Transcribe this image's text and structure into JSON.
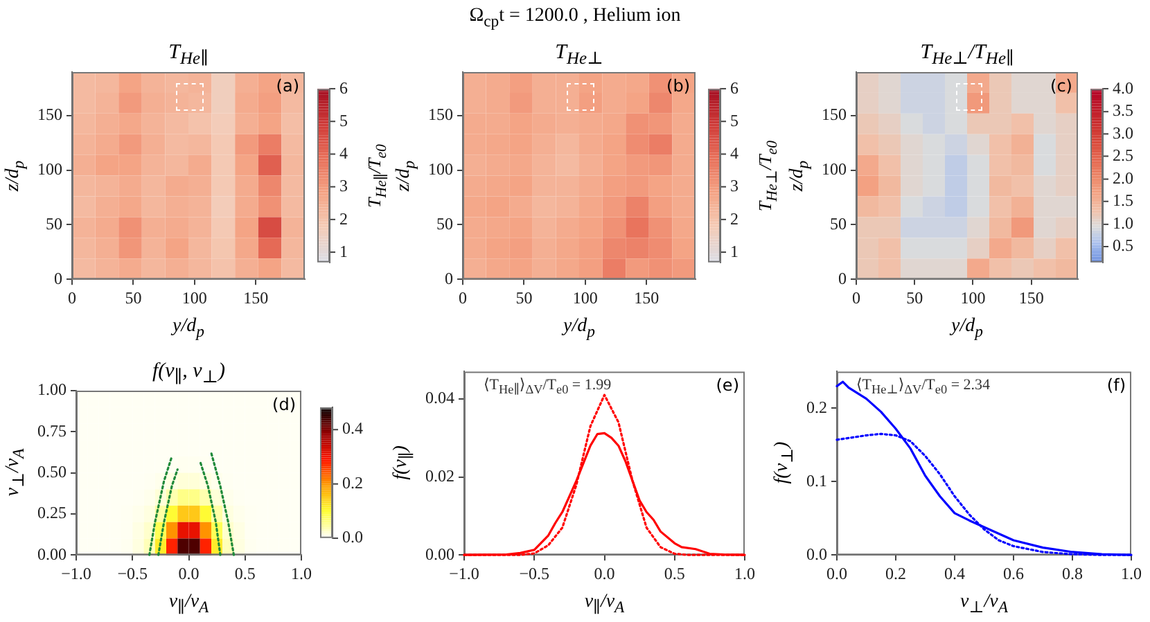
{
  "chart_data": [
    {
      "type": "other",
      "title": "Ω$_{cp}$t = 1200.0 , Helium ion"
    },
    {
      "type": "heatmap",
      "title": "T$_{He∥}$",
      "xlabel": "y/d$_{p}$",
      "ylabel": "z/d$_{p}$",
      "clabel": "T$_{He∥}$/T$_{e0}$",
      "annotations": [
        "(a)"
      ],
      "xlim": [
        0,
        190
      ],
      "ylim": [
        0,
        190
      ],
      "xticks": [
        0,
        50,
        100,
        150
      ],
      "yticks": [
        0,
        50,
        100,
        150
      ],
      "clim": [
        0.7,
        6
      ],
      "cticks": [
        1,
        2,
        3,
        4,
        5,
        6
      ],
      "colors": [
        "#dcdde4",
        "#f4cbb6",
        "#f4a384",
        "#e8705a",
        "#cf3b38",
        "#a50f22"
      ],
      "cells": [
        [
          2.2,
          2.3,
          2.8,
          2.4,
          2.3,
          2.4,
          1.6,
          2.5,
          2.8,
          2.3
        ],
        [
          2.2,
          2.4,
          3.0,
          2.5,
          2.4,
          2.3,
          1.6,
          2.6,
          2.9,
          2.2
        ],
        [
          2.3,
          2.5,
          2.7,
          2.4,
          2.2,
          2.0,
          1.7,
          2.5,
          2.8,
          2.1
        ],
        [
          2.4,
          2.6,
          3.0,
          2.5,
          2.2,
          2.3,
          1.8,
          3.0,
          3.6,
          2.2
        ],
        [
          2.5,
          2.8,
          2.8,
          2.4,
          2.3,
          2.6,
          1.8,
          2.8,
          4.2,
          2.3
        ],
        [
          2.3,
          2.4,
          2.6,
          2.3,
          2.6,
          2.5,
          1.8,
          2.6,
          3.4,
          2.2
        ],
        [
          2.2,
          2.5,
          2.7,
          2.3,
          2.5,
          2.4,
          1.7,
          2.6,
          3.2,
          2.2
        ],
        [
          2.4,
          2.6,
          3.2,
          2.5,
          2.6,
          2.4,
          1.8,
          2.8,
          4.6,
          2.4
        ],
        [
          2.3,
          2.5,
          3.1,
          2.4,
          2.8,
          2.3,
          1.9,
          2.7,
          4.0,
          2.3
        ],
        [
          2.2,
          2.4,
          2.6,
          2.3,
          2.5,
          2.3,
          2.0,
          2.5,
          2.8,
          2.2
        ]
      ]
    },
    {
      "type": "heatmap",
      "title": "T$_{He⊥}$",
      "xlabel": "y/d$_{p}$",
      "ylabel": "z/d$_{p}$",
      "clabel": "T$_{He⊥}$/T$_{e0}$",
      "annotations": [
        "(b)"
      ],
      "xlim": [
        0,
        190
      ],
      "ylim": [
        0,
        190
      ],
      "xticks": [
        0,
        50,
        100,
        150
      ],
      "yticks": [
        0,
        50,
        100,
        150
      ],
      "clim": [
        0.7,
        6
      ],
      "cticks": [
        1,
        2,
        3,
        4,
        5,
        6
      ],
      "colors": [
        "#dcdde4",
        "#f4cbb6",
        "#f4a384",
        "#e8705a",
        "#cf3b38",
        "#a50f22"
      ],
      "cells": [
        [
          2.5,
          2.6,
          2.9,
          2.5,
          2.5,
          2.8,
          2.6,
          2.7,
          3.2,
          2.8
        ],
        [
          2.5,
          2.6,
          3.0,
          2.5,
          2.5,
          2.9,
          2.6,
          2.8,
          3.4,
          2.7
        ],
        [
          2.6,
          2.6,
          2.8,
          2.6,
          2.5,
          2.6,
          2.7,
          3.2,
          3.1,
          2.6
        ],
        [
          2.6,
          2.7,
          2.8,
          2.5,
          2.3,
          2.6,
          2.8,
          3.3,
          3.6,
          2.6
        ],
        [
          2.5,
          2.6,
          2.7,
          2.4,
          2.2,
          2.5,
          2.8,
          3.0,
          3.1,
          2.6
        ],
        [
          2.6,
          2.7,
          2.8,
          2.4,
          2.4,
          2.6,
          2.9,
          3.0,
          2.8,
          2.6
        ],
        [
          2.7,
          2.8,
          2.6,
          2.3,
          2.4,
          2.7,
          3.0,
          3.5,
          2.9,
          2.6
        ],
        [
          2.6,
          2.7,
          2.8,
          2.4,
          2.6,
          2.8,
          3.2,
          3.8,
          3.2,
          2.7
        ],
        [
          2.6,
          2.8,
          2.9,
          2.5,
          2.7,
          2.9,
          3.4,
          3.5,
          3.3,
          2.8
        ],
        [
          2.5,
          2.7,
          2.8,
          2.5,
          2.7,
          2.9,
          3.6,
          3.0,
          3.2,
          3.0
        ]
      ]
    },
    {
      "type": "heatmap",
      "title": "T$_{He⊥}$/T$_{He∥}$",
      "xlabel": "y/d$_{p}$",
      "ylabel": "z/d$_{p}$",
      "annotations": [
        "(c)"
      ],
      "xlim": [
        0,
        190
      ],
      "ylim": [
        0,
        190
      ],
      "xticks": [
        0,
        50,
        100,
        150
      ],
      "yticks": [
        0,
        50,
        100,
        150
      ],
      "clim": [
        0.15,
        4.0
      ],
      "cticks": [
        0.5,
        {
          "value": 1,
          "label": "1.0"
        },
        1.5,
        {
          "value": 2,
          "label": "2.0"
        },
        2.5,
        {
          "value": 3,
          "label": "3.0"
        },
        3.5,
        {
          "value": 4,
          "label": "4.0"
        }
      ],
      "colors": [
        "#6f92e0",
        "#a9c0ee",
        "#dcdcdc",
        "#f1c0a8",
        "#f3a283",
        "#ec8466",
        "#e4664f",
        "#d9493b",
        "#cb2f2f",
        "#be1a2a",
        "#b40426"
      ],
      "cells": [
        [
          1.1,
          1.0,
          0.8,
          0.8,
          0.9,
          1.6,
          1.2,
          1.0,
          1.0,
          1.6
        ],
        [
          1.1,
          1.0,
          0.8,
          0.8,
          0.9,
          1.8,
          1.2,
          1.0,
          1.0,
          1.3
        ],
        [
          1.2,
          1.1,
          0.9,
          0.8,
          0.9,
          1.2,
          1.2,
          1.3,
          1.0,
          1.1
        ],
        [
          1.3,
          1.2,
          1.0,
          0.9,
          0.8,
          1.0,
          1.3,
          1.5,
          0.9,
          1.1
        ],
        [
          1.6,
          1.3,
          1.0,
          0.9,
          0.7,
          0.9,
          1.3,
          1.4,
          0.9,
          1.1
        ],
        [
          1.7,
          1.4,
          1.0,
          0.9,
          0.7,
          0.9,
          1.4,
          1.3,
          1.0,
          1.1
        ],
        [
          1.4,
          1.3,
          0.9,
          0.8,
          0.7,
          0.9,
          1.3,
          1.5,
          1.0,
          1.0
        ],
        [
          1.2,
          1.2,
          0.8,
          0.8,
          0.8,
          1.0,
          1.4,
          1.8,
          1.0,
          1.1
        ],
        [
          1.2,
          1.3,
          0.9,
          0.9,
          0.9,
          1.1,
          1.6,
          1.4,
          1.1,
          1.3
        ],
        [
          1.2,
          1.3,
          1.0,
          1.0,
          1.0,
          1.6,
          1.3,
          1.2,
          1.3,
          1.4
        ]
      ]
    },
    {
      "type": "heatmap",
      "title": "f(v$_{∥}$, v$_{⊥}$)",
      "xlabel": "v$_{∥}$/v$_{A}$",
      "ylabel": "v$_{⊥}$/v$_{A}$",
      "annotations": [
        "(d)"
      ],
      "xlim": [
        -1,
        1
      ],
      "ylim": [
        0,
        1
      ],
      "xticks": [
        {
          "value": -1,
          "label": "−1.0"
        },
        {
          "value": -0.5,
          "label": "−0.5"
        },
        {
          "value": 0,
          "label": "0.0"
        },
        0.5,
        {
          "value": 1,
          "label": "1.0"
        }
      ],
      "yticks": [
        {
          "value": 0,
          "label": "0.00"
        },
        0.25,
        {
          "value": 0.5,
          "label": "0.50"
        },
        0.75,
        {
          "value": 1,
          "label": "1.00"
        }
      ],
      "clim": [
        0,
        0.48
      ],
      "cticks": [
        {
          "value": 0,
          "label": "0.0"
        },
        0.2,
        0.4
      ],
      "colors": [
        "#fffff4",
        "#ffff36",
        "#ff9e00",
        "#ff1700",
        "#990000",
        "#0b0000"
      ],
      "cells": [
        [
          0,
          0,
          0,
          0,
          0,
          0,
          0,
          0,
          0,
          0,
          0,
          0,
          0,
          0,
          0,
          0,
          0,
          0,
          0,
          0
        ],
        [
          0,
          0,
          0,
          0,
          0,
          0,
          0,
          0,
          0,
          0,
          0,
          0,
          0,
          0,
          0,
          0,
          0,
          0,
          0,
          0
        ],
        [
          0,
          0,
          0,
          0,
          0,
          0,
          0,
          0,
          0,
          0,
          0,
          0,
          0,
          0,
          0,
          0,
          0,
          0,
          0,
          0
        ],
        [
          0,
          0,
          0,
          0,
          0,
          0,
          0,
          0,
          0,
          0,
          0,
          0,
          0,
          0,
          0,
          0,
          0,
          0,
          0,
          0
        ],
        [
          0,
          0,
          0,
          0,
          0,
          0,
          0,
          0,
          0.001,
          0.002,
          0.002,
          0.001,
          0,
          0,
          0,
          0,
          0,
          0,
          0,
          0
        ],
        [
          0,
          0,
          0,
          0,
          0,
          0,
          0.001,
          0.004,
          0.009,
          0.014,
          0.014,
          0.009,
          0.004,
          0.001,
          0,
          0,
          0,
          0,
          0,
          0
        ],
        [
          0,
          0,
          0,
          0,
          0,
          0.001,
          0.004,
          0.014,
          0.035,
          0.055,
          0.055,
          0.035,
          0.014,
          0.004,
          0.001,
          0,
          0,
          0,
          0,
          0
        ],
        [
          0,
          0,
          0,
          0,
          0.001,
          0.004,
          0.01,
          0.04,
          0.1,
          0.15,
          0.15,
          0.1,
          0.04,
          0.01,
          0.004,
          0.001,
          0,
          0,
          0,
          0
        ],
        [
          0,
          0,
          0,
          0,
          0.001,
          0.008,
          0.02,
          0.08,
          0.2,
          0.31,
          0.31,
          0.2,
          0.08,
          0.02,
          0.008,
          0.001,
          0,
          0,
          0,
          0
        ],
        [
          0,
          0,
          0,
          0,
          0.002,
          0.01,
          0.03,
          0.115,
          0.28,
          0.435,
          0.435,
          0.28,
          0.115,
          0.03,
          0.01,
          0.002,
          0,
          0,
          0,
          0
        ]
      ],
      "marker": "none",
      "series": [
        {
          "type": "line",
          "color": "#1f8a3a",
          "line_style": "dotted",
          "x": [
            -0.35,
            -0.3,
            -0.22,
            -0.15
          ],
          "values": [
            0,
            0.2,
            0.45,
            0.6
          ]
        },
        {
          "type": "line",
          "color": "#1f8a3a",
          "line_style": "dotted",
          "x": [
            -0.27,
            -0.22,
            -0.15,
            -0.1
          ],
          "values": [
            0,
            0.2,
            0.42,
            0.52
          ]
        },
        {
          "type": "line",
          "color": "#1f8a3a",
          "line_style": "dotted",
          "x": [
            0.28,
            0.24,
            0.17,
            0.1
          ],
          "values": [
            0,
            0.2,
            0.42,
            0.57
          ]
        },
        {
          "type": "line",
          "color": "#1f8a3a",
          "line_style": "dotted",
          "x": [
            0.4,
            0.35,
            0.28,
            0.2
          ],
          "values": [
            0,
            0.2,
            0.42,
            0.62
          ]
        }
      ]
    },
    {
      "type": "line",
      "xlabel": "v$_{∥}$/v$_{A}$",
      "ylabel": "f(v$_{∥}$)",
      "annotations": [
        "⟨T$_{He∥}$⟩$_{ΔV}$/T$_{e0}$ = 1.99",
        "(e)"
      ],
      "xlim": [
        -1,
        1
      ],
      "ylim": [
        0,
        0.047
      ],
      "xticks": [
        {
          "value": -1,
          "label": "−1.0"
        },
        {
          "value": -0.5,
          "label": "−0.5"
        },
        {
          "value": 0,
          "label": "0.0"
        },
        0.5,
        {
          "value": 1,
          "label": "1.0"
        }
      ],
      "yticks": [
        {
          "value": 0,
          "label": "0.00"
        },
        0.02,
        0.04
      ],
      "marker": "none",
      "series": [
        {
          "type": "line",
          "color": "#ff0000",
          "line_style": "solid",
          "x": [
            -1,
            -0.7,
            -0.6,
            -0.5,
            -0.4,
            -0.35,
            -0.3,
            -0.2,
            -0.1,
            -0.05,
            0,
            0.05,
            0.1,
            0.15,
            0.2,
            0.25,
            0.3,
            0.35,
            0.4,
            0.5,
            0.55,
            0.65,
            0.75,
            0.85,
            1
          ],
          "values": [
            0,
            0.0001,
            0.0005,
            0.0013,
            0.005,
            0.0082,
            0.011,
            0.019,
            0.028,
            0.031,
            0.0312,
            0.03,
            0.028,
            0.024,
            0.019,
            0.014,
            0.011,
            0.009,
            0.006,
            0.003,
            0.002,
            0.0015,
            0.0003,
            0.0001,
            0
          ]
        },
        {
          "type": "line",
          "color": "#ff0000",
          "line_style": "dotted",
          "x": [
            -1,
            -0.6,
            -0.5,
            -0.4,
            -0.3,
            -0.2,
            -0.1,
            0,
            0.1,
            0.2,
            0.3,
            0.4,
            0.5,
            0.6,
            1
          ],
          "values": [
            0,
            0,
            0.0004,
            0.0025,
            0.007,
            0.018,
            0.033,
            0.041,
            0.034,
            0.019,
            0.007,
            0.002,
            0.0003,
            0,
            0
          ]
        }
      ]
    },
    {
      "type": "line",
      "xlabel": "v$_{⊥}$/v$_{A}$",
      "ylabel": "f(v$_{⊥}$)",
      "annotations": [
        "⟨T$_{He⊥}$⟩$_{ΔV}$/T$_{e0}$ = 2.34",
        "(f)"
      ],
      "xlim": [
        0,
        1
      ],
      "ylim": [
        0,
        0.25
      ],
      "xticks": [
        {
          "value": 0,
          "label": "0.0"
        },
        0.2,
        0.4,
        0.6,
        0.8,
        {
          "value": 1,
          "label": "1.0"
        }
      ],
      "yticks": [
        {
          "value": 0,
          "label": "0.0"
        },
        0.1,
        0.2
      ],
      "marker": "none",
      "series": [
        {
          "type": "line",
          "color": "#0000ff",
          "line_style": "solid",
          "x": [
            0,
            0.02,
            0.04,
            0.1,
            0.15,
            0.2,
            0.25,
            0.3,
            0.35,
            0.4,
            0.45,
            0.5,
            0.6,
            0.7,
            0.8,
            0.9,
            1
          ],
          "values": [
            0.23,
            0.236,
            0.228,
            0.213,
            0.195,
            0.172,
            0.145,
            0.108,
            0.08,
            0.057,
            0.047,
            0.038,
            0.02,
            0.01,
            0.004,
            0.001,
            0
          ]
        },
        {
          "type": "line",
          "color": "#0000ff",
          "line_style": "dotted",
          "x": [
            0,
            0.1,
            0.15,
            0.2,
            0.25,
            0.3,
            0.35,
            0.4,
            0.45,
            0.5,
            0.55,
            0.6,
            0.7,
            0.8,
            0.9,
            1
          ],
          "values": [
            0.157,
            0.163,
            0.165,
            0.163,
            0.155,
            0.135,
            0.11,
            0.08,
            0.055,
            0.035,
            0.02,
            0.012,
            0.004,
            0.001,
            0,
            0
          ]
        }
      ]
    }
  ]
}
